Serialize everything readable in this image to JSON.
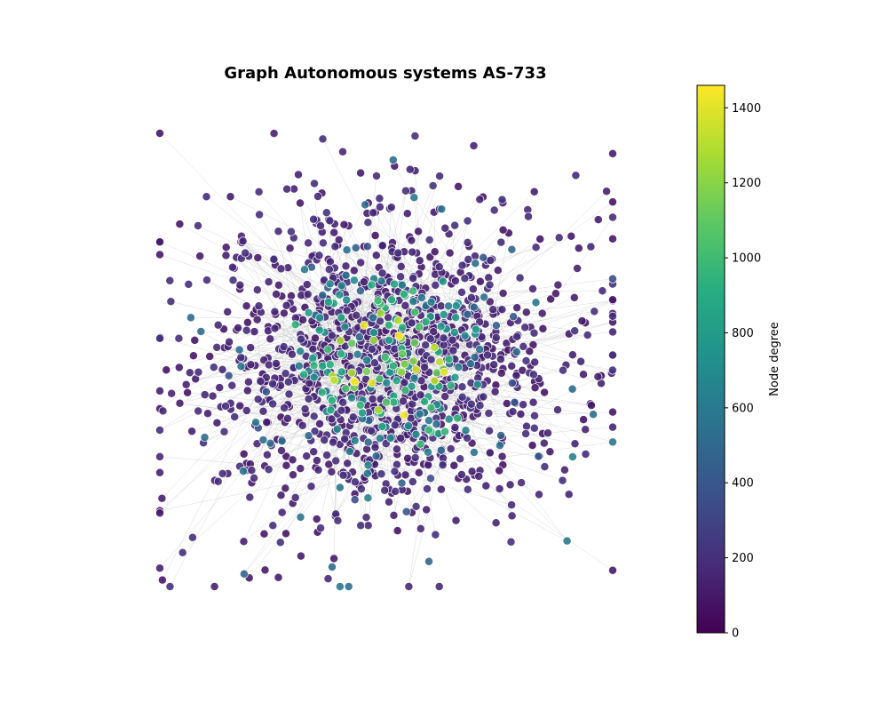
{
  "chart_data": {
    "type": "network",
    "title": "Graph Autonomous systems AS-733",
    "colorbar": {
      "label": "Node degree",
      "min": 0,
      "max": 1460,
      "ticks": [
        0,
        200,
        400,
        600,
        800,
        1000,
        1200,
        1400
      ],
      "tick_labels": [
        "0",
        "200",
        "400",
        "600",
        "800",
        "1000",
        "1200",
        "1400"
      ],
      "colormap": "viridis",
      "colormap_stops": [
        "#440154",
        "#472c7a",
        "#3b518b",
        "#2c718e",
        "#21908d",
        "#27ad81",
        "#5cc863",
        "#aadc32",
        "#fde725"
      ]
    },
    "node_alpha": 0.9,
    "node_edge_color": "#ffffff",
    "edge_color": "#bbbbbb",
    "axes_visible": false
  }
}
